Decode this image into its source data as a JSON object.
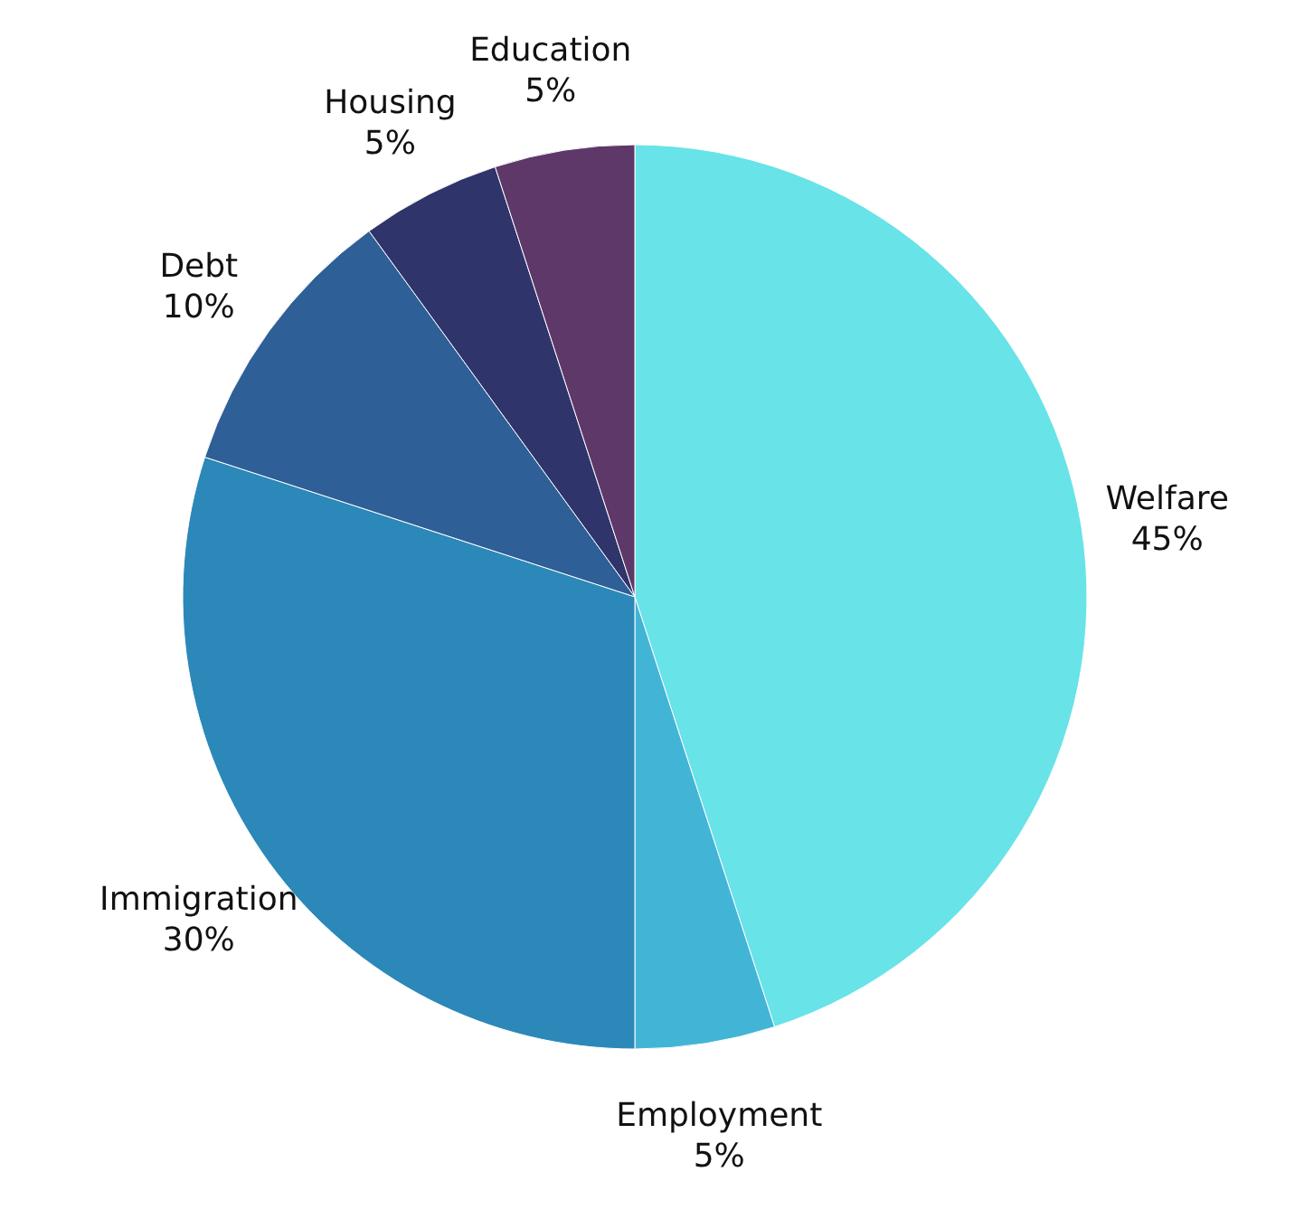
{
  "chart_data": {
    "type": "pie",
    "categories": [
      "Welfare",
      "Employment",
      "Immigration",
      "Debt",
      "Housing",
      "Education"
    ],
    "values": [
      45,
      5,
      30,
      10,
      5,
      5
    ],
    "value_labels": [
      "45%",
      "5%",
      "30%",
      "10%",
      "5%",
      "5%"
    ],
    "colors": [
      "#68e3e8",
      "#42b5d6",
      "#2b88b8",
      "#2e5f97",
      "#2f346b",
      "#5e3868"
    ]
  }
}
